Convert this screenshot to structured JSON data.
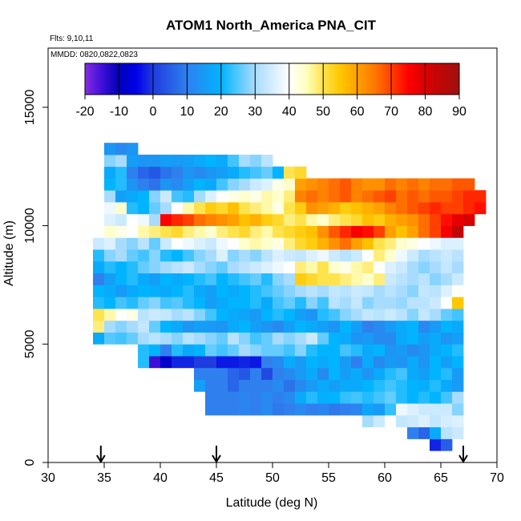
{
  "chart_data": {
    "type": "heatmap",
    "title": "ATOM1 North_America PNA_CIT",
    "annotations": {
      "flights": "Flts: 9,10,11",
      "dates": "MMDD: 0820,0822,0823"
    },
    "xlabel": "Latitude (deg N)",
    "ylabel": "Altitude (m)",
    "xlim": [
      30,
      70
    ],
    "ylim": [
      0,
      17500
    ],
    "x_ticks": [
      30,
      35,
      40,
      45,
      50,
      55,
      60,
      65,
      70
    ],
    "y_ticks": [
      0,
      5000,
      10000,
      15000
    ],
    "colorbar": {
      "ticks": [
        -20,
        -10,
        0,
        10,
        20,
        30,
        40,
        50,
        60,
        70,
        80,
        90
      ],
      "range": [
        -20,
        90
      ],
      "stops": [
        {
          "value": -20,
          "color": "#8a2be2"
        },
        {
          "value": -15,
          "color": "#3f10d8"
        },
        {
          "value": -10,
          "color": "#0000b8"
        },
        {
          "value": -5,
          "color": "#0000e8"
        },
        {
          "value": 0,
          "color": "#1e3ce0"
        },
        {
          "value": 10,
          "color": "#2f80ee"
        },
        {
          "value": 20,
          "color": "#00b4ff"
        },
        {
          "value": 30,
          "color": "#a8dcff"
        },
        {
          "value": 40,
          "color": "#ffffff"
        },
        {
          "value": 45,
          "color": "#ffffc0"
        },
        {
          "value": 50,
          "color": "#ffe34d"
        },
        {
          "value": 55,
          "color": "#ffc800"
        },
        {
          "value": 60,
          "color": "#ffa000"
        },
        {
          "value": 65,
          "color": "#ff7a00"
        },
        {
          "value": 70,
          "color": "#ff4000"
        },
        {
          "value": 75,
          "color": "#ff0000"
        },
        {
          "value": 80,
          "color": "#d80000"
        },
        {
          "value": 90,
          "color": "#a01010"
        }
      ]
    },
    "flight_markers_lat": [
      34.7,
      45,
      67
    ],
    "cell_size": {
      "lat": 1,
      "alt": 500
    },
    "rows": [
      {
        "alt": 500,
        "start": 64,
        "values": [
          -2,
          5
        ]
      },
      {
        "alt": 1000,
        "start": 62,
        "values": [
          10,
          6,
          18,
          32,
          34
        ]
      },
      {
        "alt": 1500,
        "start": 58,
        "values": [
          30,
          34,
          40,
          33,
          34,
          36,
          33,
          35,
          36
        ]
      },
      {
        "alt": 2000,
        "start": 44,
        "values": [
          10,
          10,
          10,
          11,
          10,
          12,
          9,
          10,
          12,
          10,
          11,
          9,
          10,
          11,
          17,
          15,
          23,
          38,
          36,
          34,
          34,
          34,
          28
        ]
      },
      {
        "alt": 2500,
        "start": 44,
        "values": [
          10,
          10,
          10,
          11,
          10,
          12,
          10,
          12,
          18,
          22,
          19,
          20,
          23,
          24,
          22,
          24,
          26,
          22,
          20,
          22,
          20,
          24,
          30
        ]
      },
      {
        "alt": 3000,
        "start": 43,
        "values": [
          16,
          10,
          10,
          6,
          10,
          10,
          10,
          12,
          8,
          12,
          15,
          18,
          16,
          18,
          18,
          20,
          22,
          24,
          22,
          20,
          19,
          22,
          18,
          15
        ]
      },
      {
        "alt": 3500,
        "start": 43,
        "values": [
          10,
          10,
          10,
          6,
          4,
          10,
          2,
          10,
          12,
          15,
          18,
          12,
          20,
          16,
          18,
          14,
          18,
          22,
          24,
          18,
          16,
          20,
          22,
          15
        ]
      },
      {
        "alt": 4000,
        "start": 38,
        "values": [
          22,
          -15,
          -8,
          -2,
          -2,
          0,
          0,
          -3,
          -3,
          -2,
          -3,
          10,
          12,
          18,
          15,
          20,
          18,
          20,
          15,
          10,
          18,
          12,
          15,
          14,
          18,
          14,
          20,
          16,
          20
        ]
      },
      {
        "alt": 4500,
        "start": 38,
        "values": [
          22,
          20,
          10,
          22,
          18,
          20,
          26,
          24,
          26,
          30,
          28,
          26,
          26,
          24,
          28,
          22,
          20,
          20,
          24,
          22,
          18,
          20,
          14,
          15,
          12,
          14,
          18,
          20,
          22
        ]
      },
      {
        "alt": 5000,
        "start": 34,
        "values": [
          18,
          25,
          24,
          26,
          30,
          32,
          30,
          28,
          32,
          30,
          28,
          26,
          32,
          28,
          24,
          26,
          30,
          28,
          30,
          34,
          26,
          20,
          18,
          14,
          15,
          12,
          12,
          18,
          20,
          16,
          18,
          14,
          16
        ]
      },
      {
        "alt": 5500,
        "start": 34,
        "values": [
          48,
          30,
          28,
          30,
          33,
          26,
          20,
          18,
          14,
          16,
          15,
          14,
          18,
          20,
          16,
          14,
          12,
          16,
          20,
          18,
          16,
          14,
          20,
          16,
          10,
          12,
          15,
          18,
          20,
          12,
          15,
          20,
          18
        ]
      },
      {
        "alt": 6000,
        "start": 34,
        "values": [
          50,
          46,
          40,
          42,
          32,
          34,
          33,
          30,
          32,
          28,
          24,
          20,
          18,
          17,
          15,
          20,
          22,
          20,
          16,
          14,
          22,
          24,
          28,
          30,
          33,
          32,
          34,
          32,
          28,
          33,
          30,
          26,
          24
        ]
      },
      {
        "alt": 6500,
        "start": 34,
        "values": [
          22,
          20,
          24,
          22,
          26,
          28,
          24,
          25,
          22,
          20,
          16,
          18,
          20,
          20,
          22,
          18,
          24,
          26,
          22,
          28,
          24,
          32,
          30,
          33,
          28,
          30,
          30,
          29,
          32,
          32,
          34,
          40,
          55
        ]
      },
      {
        "alt": 7000,
        "start": 34,
        "values": [
          20,
          18,
          15,
          18,
          20,
          19,
          18,
          20,
          22,
          18,
          16,
          20,
          18,
          20,
          22,
          24,
          26,
          28,
          30,
          32,
          30,
          33,
          32,
          34,
          33,
          30,
          32,
          30,
          28,
          33,
          32,
          36,
          40
        ]
      },
      {
        "alt": 7500,
        "start": 34,
        "values": [
          10,
          16,
          20,
          22,
          18,
          16,
          20,
          18,
          20,
          22,
          24,
          20,
          22,
          24,
          26,
          22,
          28,
          30,
          54,
          52,
          50,
          50,
          48,
          46,
          44,
          48,
          34,
          32,
          30,
          32,
          28,
          30,
          34
        ]
      },
      {
        "alt": 8000,
        "start": 34,
        "values": [
          18,
          22,
          20,
          22,
          26,
          28,
          30,
          32,
          34,
          30,
          28,
          26,
          30,
          32,
          34,
          36,
          38,
          40,
          48,
          46,
          50,
          44,
          42,
          46,
          48,
          40,
          36,
          34,
          30,
          28,
          30,
          33,
          30
        ]
      },
      {
        "alt": 8500,
        "start": 34,
        "values": [
          22,
          28,
          30,
          26,
          24,
          28,
          22,
          20,
          24,
          28,
          30,
          36,
          28,
          30,
          28,
          32,
          36,
          34,
          33,
          36,
          38,
          34,
          32,
          34,
          40,
          48,
          44,
          38,
          34,
          30,
          32,
          34,
          32
        ]
      },
      {
        "alt": 9000,
        "start": 34,
        "values": [
          34,
          36,
          30,
          28,
          32,
          26,
          34,
          40,
          38,
          36,
          34,
          38,
          40,
          44,
          46,
          44,
          42,
          48,
          52,
          54,
          58,
          62,
          66,
          60,
          56,
          50,
          48,
          44,
          42,
          40,
          38,
          36,
          36
        ]
      },
      {
        "alt": 9500,
        "start": 34,
        "values": [
          40,
          44,
          42,
          40,
          46,
          48,
          50,
          52,
          48,
          46,
          44,
          48,
          50,
          52,
          48,
          46,
          50,
          52,
          54,
          56,
          62,
          68,
          72,
          76,
          74,
          70,
          60,
          56,
          60,
          66,
          70,
          76,
          84
        ]
      },
      {
        "alt": 10000,
        "start": 35,
        "values": [
          36,
          34,
          40,
          38,
          30,
          75,
          72,
          70,
          66,
          64,
          62,
          60,
          56,
          58,
          54,
          52,
          48,
          50,
          46,
          44,
          48,
          50,
          52,
          56,
          54,
          58,
          60,
          62,
          66,
          70,
          74,
          78,
          80
        ]
      },
      {
        "alt": 10500,
        "start": 35,
        "values": [
          38,
          44,
          22,
          20,
          26,
          30,
          40,
          46,
          50,
          54,
          52,
          56,
          50,
          48,
          46,
          42,
          50,
          54,
          62,
          60,
          58,
          54,
          56,
          58,
          60,
          64,
          66,
          68,
          70,
          72,
          70,
          70,
          72,
          74
        ]
      },
      {
        "alt": 11000,
        "start": 35,
        "values": [
          30,
          16,
          18,
          20,
          28,
          34,
          24,
          22,
          30,
          36,
          40,
          42,
          44,
          42,
          46,
          44,
          48,
          64,
          66,
          64,
          66,
          68,
          64,
          66,
          68,
          70,
          66,
          68,
          66,
          68,
          68,
          70,
          72,
          72
        ]
      },
      {
        "alt": 11500,
        "start": 35,
        "values": [
          20,
          22,
          14,
          10,
          8,
          14,
          12,
          16,
          20,
          18,
          24,
          28,
          30,
          34,
          36,
          42,
          44,
          60,
          62,
          64,
          66,
          68,
          64,
          62,
          62,
          66,
          64,
          66,
          64,
          66,
          66,
          68,
          68
        ]
      },
      {
        "alt": 12000,
        "start": 35,
        "values": [
          18,
          22,
          10,
          6,
          4,
          8,
          10,
          14,
          12,
          14,
          16,
          18,
          22,
          24,
          26,
          20,
          50,
          52
        ]
      },
      {
        "alt": 12500,
        "start": 35,
        "values": [
          28,
          30,
          16,
          14,
          14,
          16,
          15,
          16,
          18,
          20,
          18,
          24,
          30,
          28,
          32
        ]
      },
      {
        "alt": 13000,
        "start": 35,
        "values": [
          14,
          12,
          14
        ]
      }
    ]
  }
}
